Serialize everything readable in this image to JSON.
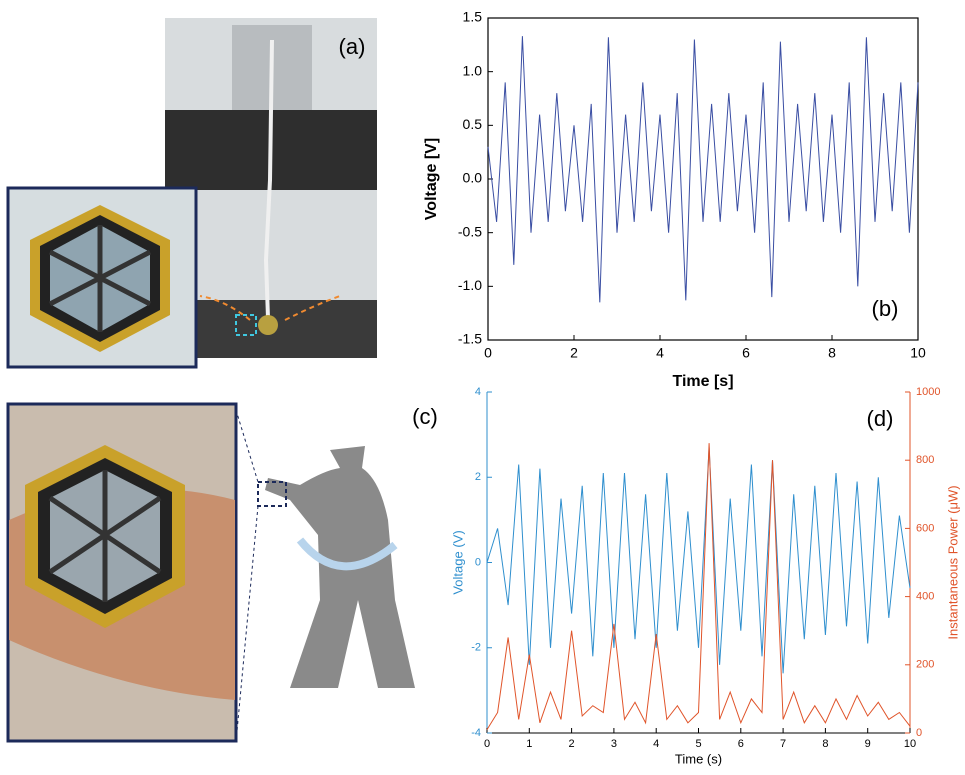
{
  "photo_labels": [
    "(a)",
    "(c)"
  ],
  "chart_data": [
    {
      "type": "line",
      "annotation": "(b)",
      "xlabel": "Time [s]",
      "ylabel": "Voltage [V]",
      "color": "#3a4ea3",
      "x": [
        0,
        0.2,
        0.4,
        0.6,
        0.8,
        1,
        1.2,
        1.4,
        1.6,
        1.8,
        2,
        2.2,
        2.4,
        2.6,
        2.8,
        3,
        3.2,
        3.4,
        3.6,
        3.8,
        4,
        4.2,
        4.4,
        4.6,
        4.8,
        5,
        5.2,
        5.4,
        5.6,
        5.8,
        6,
        6.2,
        6.4,
        6.6,
        6.8,
        7,
        7.2,
        7.4,
        7.6,
        7.8,
        8,
        8.2,
        8.4,
        8.6,
        8.8,
        9,
        9.2,
        9.4,
        9.6,
        9.8,
        10
      ],
      "values": [
        0.3,
        -0.4,
        0.9,
        -0.8,
        1.33,
        -0.5,
        0.6,
        -0.4,
        0.8,
        -0.3,
        0.5,
        -0.4,
        0.7,
        -1.15,
        1.32,
        -0.5,
        0.6,
        -0.4,
        0.9,
        -0.3,
        0.6,
        -0.5,
        0.8,
        -1.13,
        1.3,
        -0.4,
        0.7,
        -0.4,
        0.8,
        -0.3,
        0.6,
        -0.5,
        0.9,
        -1.1,
        1.28,
        -0.4,
        0.7,
        -0.3,
        0.8,
        -0.4,
        0.6,
        -0.5,
        0.9,
        -1.0,
        1.32,
        -0.4,
        0.8,
        -0.3,
        0.9,
        -0.5,
        0.9
      ],
      "xlim": [
        0,
        10
      ],
      "xticks": [
        0,
        2,
        4,
        6,
        8,
        10
      ],
      "ylim": [
        -1.5,
        1.5
      ],
      "yticks": [
        -1.5,
        {
          "value": -1.0,
          "label": "-1.0"
        },
        -0.5,
        {
          "value": 0,
          "label": "0.0"
        },
        0.5,
        {
          "value": 1.0,
          "label": "1.0"
        },
        1.5
      ]
    },
    {
      "type": "line",
      "annotation": "(d)",
      "xlabel": "Time (s)",
      "ylabel": "Voltage (V)",
      "y2label": "Instantaneous Power (μW)",
      "x": [
        0,
        0.25,
        0.5,
        0.75,
        1,
        1.25,
        1.5,
        1.75,
        2,
        2.25,
        2.5,
        2.75,
        3,
        3.25,
        3.5,
        3.75,
        4,
        4.25,
        4.5,
        4.75,
        5,
        5.25,
        5.5,
        5.75,
        6,
        6.25,
        6.5,
        6.75,
        7,
        7.25,
        7.5,
        7.75,
        8,
        8.25,
        8.5,
        8.75,
        9,
        9.25,
        9.5,
        9.75,
        10
      ],
      "series": [
        {
          "color": "#2f8fce",
          "values": [
            0,
            0.8,
            -1,
            2.3,
            -2.4,
            2.2,
            -2,
            1.5,
            -1.2,
            1.8,
            -2.2,
            2.1,
            -2,
            2.1,
            -1.8,
            1.6,
            -2,
            2.1,
            -1.6,
            1.2,
            -2,
            2.7,
            -2.4,
            1.5,
            -1.6,
            2.3,
            -2.2,
            2.4,
            -2.6,
            1.6,
            -1.8,
            1.8,
            -1.7,
            2.1,
            -1.5,
            1.9,
            -1.9,
            2,
            -1.3,
            1.1,
            -0.6
          ]
        },
        {
          "color": "#e0542a",
          "axis": "y2",
          "values": [
            10,
            60,
            280,
            40,
            230,
            30,
            120,
            40,
            300,
            50,
            80,
            60,
            320,
            40,
            90,
            30,
            290,
            40,
            80,
            30,
            60,
            850,
            40,
            120,
            30,
            100,
            60,
            800,
            40,
            120,
            30,
            80,
            30,
            100,
            40,
            110,
            50,
            90,
            40,
            60,
            20
          ]
        }
      ],
      "xlim": [
        0,
        10
      ],
      "xticks": [
        0,
        1,
        2,
        3,
        4,
        5,
        6,
        7,
        8,
        9,
        10
      ],
      "ylim": [
        -4,
        4
      ],
      "yticks": [
        -4,
        -2,
        0,
        2,
        4
      ],
      "y2lim": [
        0,
        1000
      ],
      "y2ticks": [
        0,
        200,
        400,
        600,
        800,
        1000
      ]
    }
  ]
}
